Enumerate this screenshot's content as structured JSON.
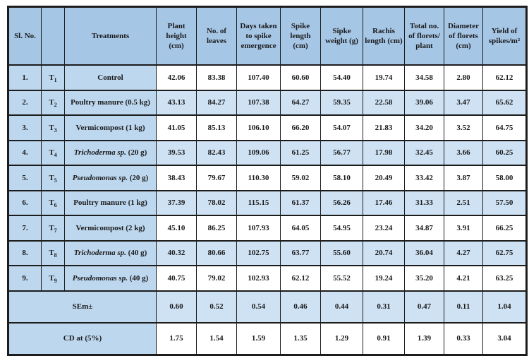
{
  "colors": {
    "header_bg": "#a6c6e6",
    "label_bg": "#bdd7ee",
    "shaded_row_bg": "#cfe2f4",
    "border": "#1c1c1c"
  },
  "table": {
    "headers": [
      "Sl. No.",
      "",
      "Treatments",
      "Plant height (cm)",
      "No. of leaves",
      "Days taken to spike emergence",
      "Spike length (cm)",
      "Sipke weight (g)",
      "Rachis length (cm)",
      "Total no. of florets/ plant",
      "Diameter of florets (cm)",
      "Yield of spikes/m²"
    ],
    "rows": [
      {
        "sl": "1.",
        "code": "T",
        "code_sub": "1",
        "treatment_italic": "",
        "treatment_rest": "Control",
        "shaded": false,
        "values": [
          "42.06",
          "83.38",
          "107.40",
          "60.60",
          "54.40",
          "19.74",
          "34.58",
          "2.80",
          "62.12"
        ]
      },
      {
        "sl": "2.",
        "code": "T",
        "code_sub": "2",
        "treatment_italic": "",
        "treatment_rest": "Poultry manure (0.5 kg)",
        "shaded": true,
        "values": [
          "43.13",
          "84.27",
          "107.38",
          "64.27",
          "59.35",
          "22.58",
          "39.06",
          "3.47",
          "65.62"
        ]
      },
      {
        "sl": "3.",
        "code": "T",
        "code_sub": "3",
        "treatment_italic": "",
        "treatment_rest": "Vermicompost (1 kg)",
        "shaded": false,
        "values": [
          "41.05",
          "85.13",
          "106.10",
          "66.20",
          "54.07",
          "21.83",
          "34.20",
          "3.52",
          "64.75"
        ]
      },
      {
        "sl": "4.",
        "code": "T",
        "code_sub": "4",
        "treatment_italic": "Trichoderma sp.",
        "treatment_rest": " (20 g)",
        "shaded": true,
        "values": [
          "39.53",
          "82.43",
          "109.06",
          "61.25",
          "56.77",
          "17.98",
          "32.45",
          "3.66",
          "60.25"
        ]
      },
      {
        "sl": "5.",
        "code": "T",
        "code_sub": "5",
        "treatment_italic": "Pseudomonas sp.",
        "treatment_rest": " (20 g)",
        "shaded": false,
        "values": [
          "38.43",
          "79.67",
          "110.30",
          "59.02",
          "58.10",
          "20.49",
          "33.42",
          "3.87",
          "58.00"
        ]
      },
      {
        "sl": "6.",
        "code": "T",
        "code_sub": "6",
        "treatment_italic": "",
        "treatment_rest": "Poultry manure (1 kg)",
        "shaded": true,
        "values": [
          "37.39",
          "78.02",
          "115.15",
          "61.37",
          "56.26",
          "17.46",
          "31.33",
          "2.51",
          "57.50"
        ]
      },
      {
        "sl": "7.",
        "code": "T",
        "code_sub": "7",
        "treatment_italic": "",
        "treatment_rest": "Vermicompost (2 kg)",
        "shaded": false,
        "values": [
          "45.10",
          "86.25",
          "107.93",
          "64.05",
          "54.95",
          "23.24",
          "34.87",
          "3.91",
          "66.25"
        ]
      },
      {
        "sl": "8.",
        "code": "T",
        "code_sub": "8",
        "treatment_italic": "Trichoderma sp.",
        "treatment_rest": " (40 g)",
        "shaded": true,
        "values": [
          "40.32",
          "80.66",
          "102.75",
          "63.77",
          "55.60",
          "20.74",
          "36.04",
          "4.27",
          "62.75"
        ]
      },
      {
        "sl": "9.",
        "code": "T",
        "code_sub": "9",
        "treatment_italic": "Pseudomonas sp.",
        "treatment_rest": " (40 g)",
        "shaded": false,
        "values": [
          "40.75",
          "79.02",
          "102.93",
          "62.12",
          "55.52",
          "19.24",
          "35.20",
          "4.21",
          "63.25"
        ]
      }
    ],
    "footer_rows": [
      {
        "label": "SEm±",
        "shaded": true,
        "values": [
          "0.60",
          "0.52",
          "0.54",
          "0.46",
          "0.44",
          "0.31",
          "0.47",
          "0.11",
          "1.04"
        ]
      },
      {
        "label": "CD at (5%)",
        "shaded": false,
        "values": [
          "1.75",
          "1.54",
          "1.59",
          "1.35",
          "1.29",
          "0.91",
          "1.39",
          "0.33",
          "3.04"
        ]
      }
    ]
  }
}
